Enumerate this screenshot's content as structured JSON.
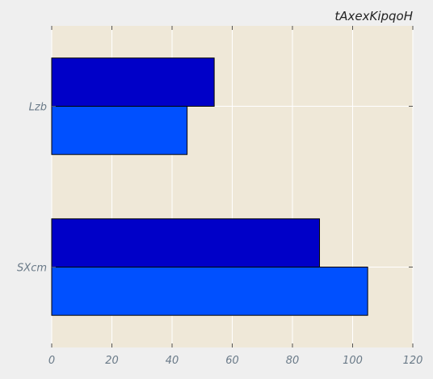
{
  "chart_data": {
    "type": "bar",
    "orientation": "horizontal",
    "title": "tAxexKipqoH",
    "xlabel": "",
    "ylabel": "",
    "categories": [
      "SXcm",
      "Lzb"
    ],
    "series": [
      {
        "values": [
          105,
          45
        ]
      },
      {
        "values": [
          89,
          54
        ]
      }
    ],
    "xlim": [
      0,
      120
    ],
    "xticks": [
      0,
      20,
      40,
      60,
      80,
      100,
      120
    ],
    "grid": true,
    "colors": {
      "plot_background": "#efe8d8",
      "page_background": "#efefef",
      "grid": "#ffffff",
      "series": [
        "#0050ff",
        "#0000c8"
      ]
    }
  }
}
